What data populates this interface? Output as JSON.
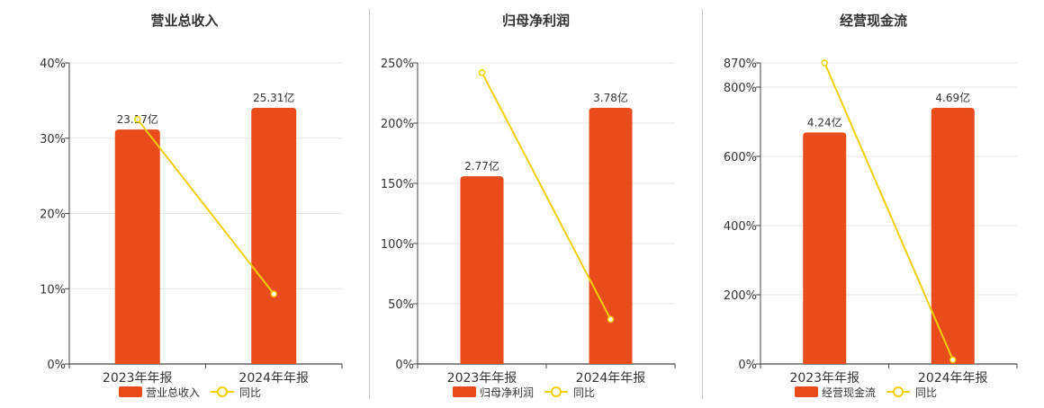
{
  "colors": {
    "bar": "#e84c1a",
    "line": "#f0d000",
    "grid": "#e6e6e6",
    "axis": "#444444"
  },
  "chart_data": [
    {
      "type": "bar",
      "title": "营业总收入",
      "categories": [
        "2023年年报",
        "2024年年报"
      ],
      "series": [
        {
          "name": "营业总收入",
          "type": "bar",
          "values": [
            23.17,
            25.31
          ],
          "labels": [
            "23.17亿",
            "25.31亿"
          ]
        },
        {
          "name": "同比",
          "type": "line",
          "values": [
            32.5,
            9.3
          ]
        }
      ],
      "ylim": [
        0,
        40
      ],
      "yticks": [
        "0%",
        "10%",
        "20%",
        "30%",
        "40%"
      ],
      "legend": "bottom",
      "grid": true
    },
    {
      "type": "bar",
      "title": "归母净利润",
      "categories": [
        "2023年年报",
        "2024年年报"
      ],
      "series": [
        {
          "name": "归母净利润",
          "type": "bar",
          "values": [
            2.77,
            3.78
          ],
          "labels": [
            "2.77亿",
            "3.78亿"
          ]
        },
        {
          "name": "同比",
          "type": "line",
          "values": [
            242,
            37
          ]
        }
      ],
      "ylim": [
        0,
        250
      ],
      "yticks": [
        "0%",
        "50%",
        "100%",
        "150%",
        "200%",
        "250%"
      ],
      "legend": "bottom",
      "grid": true
    },
    {
      "type": "bar",
      "title": "经营现金流",
      "categories": [
        "2023年年报",
        "2024年年报"
      ],
      "series": [
        {
          "name": "经营现金流",
          "type": "bar",
          "values": [
            4.24,
            4.69
          ],
          "labels": [
            "4.24亿",
            "4.69亿"
          ]
        },
        {
          "name": "同比",
          "type": "line",
          "values": [
            870,
            12
          ]
        }
      ],
      "ylim": [
        0,
        870
      ],
      "yticks": [
        "0%",
        "200%",
        "400%",
        "600%",
        "800%",
        "870%"
      ],
      "legend": "bottom",
      "grid": true
    }
  ]
}
